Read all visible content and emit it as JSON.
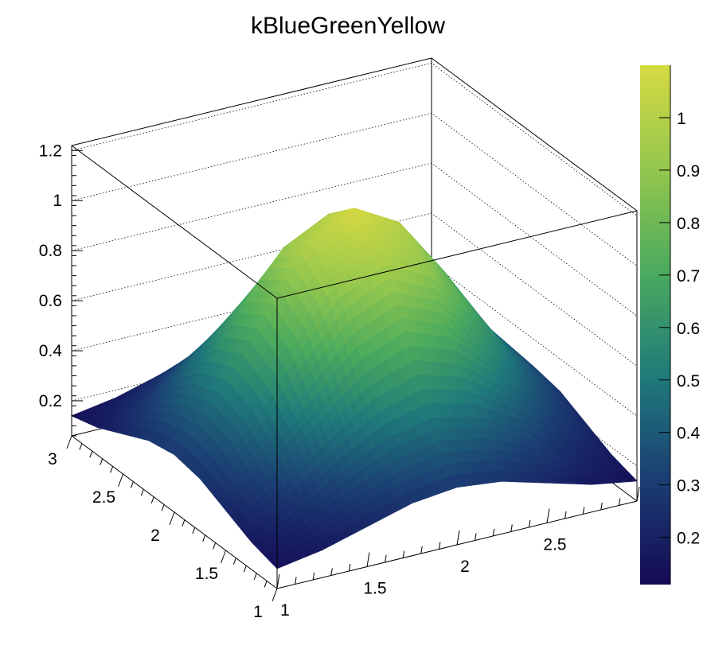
{
  "chart_data": {
    "type": "surface",
    "title": "kBlueGreenYellow",
    "palette": "kBlueGreenYellow",
    "palette_colors": [
      "#150a56",
      "#1b3d73",
      "#1f7a7a",
      "#4aaa5e",
      "#94c74e",
      "#d5d942"
    ],
    "x": [
      1,
      1.25,
      1.5,
      1.75,
      2,
      2.25,
      2.5,
      2.75,
      3
    ],
    "y": [
      1,
      1.25,
      1.5,
      1.75,
      2,
      2.25,
      2.5,
      2.75,
      3
    ],
    "z": [
      [
        0.14,
        0.17,
        0.22,
        0.27,
        0.29,
        0.27,
        0.22,
        0.17,
        0.14
      ],
      [
        0.17,
        0.25,
        0.36,
        0.45,
        0.49,
        0.45,
        0.36,
        0.25,
        0.17
      ],
      [
        0.22,
        0.36,
        0.53,
        0.69,
        0.76,
        0.69,
        0.53,
        0.36,
        0.22
      ],
      [
        0.27,
        0.45,
        0.69,
        0.91,
        1.0,
        0.91,
        0.69,
        0.45,
        0.27
      ],
      [
        0.29,
        0.49,
        0.76,
        1.0,
        1.1,
        1.0,
        0.76,
        0.49,
        0.29
      ],
      [
        0.27,
        0.45,
        0.69,
        0.91,
        1.0,
        0.91,
        0.69,
        0.45,
        0.27
      ],
      [
        0.22,
        0.36,
        0.53,
        0.69,
        0.76,
        0.69,
        0.53,
        0.36,
        0.22
      ],
      [
        0.17,
        0.25,
        0.36,
        0.45,
        0.49,
        0.45,
        0.36,
        0.25,
        0.17
      ],
      [
        0.14,
        0.17,
        0.22,
        0.27,
        0.29,
        0.27,
        0.22,
        0.17,
        0.14
      ]
    ],
    "xlim": [
      1,
      3
    ],
    "ylim": [
      1,
      3
    ],
    "zlim": [
      0.06,
      1.22
    ],
    "x_ticks": [
      "1",
      "1.5",
      "2",
      "2.5",
      "3"
    ],
    "y_ticks": [
      "1",
      "1.5",
      "2",
      "2.5",
      "3"
    ],
    "z_ticks": [
      "0.2",
      "0.4",
      "0.6",
      "0.8",
      "1",
      "1.2"
    ],
    "colorbar": {
      "range": [
        0.11,
        1.1
      ],
      "ticks": [
        "0.2",
        "0.3",
        "0.4",
        "0.5",
        "0.6",
        "0.7",
        "0.8",
        "0.9",
        "1"
      ]
    },
    "grid": true
  }
}
